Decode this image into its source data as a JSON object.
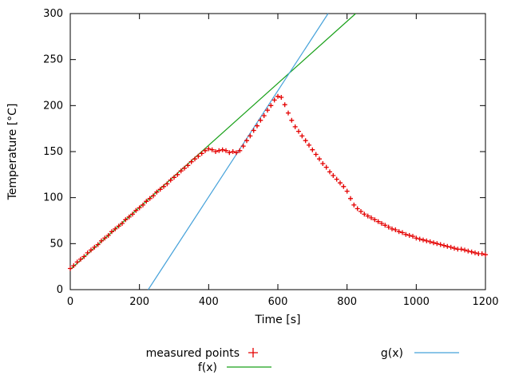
{
  "chart_data": {
    "type": "scatter",
    "title": "",
    "xlabel": "Time [s]",
    "ylabel": "Temperature [°C]",
    "xlim": [
      0,
      1200
    ],
    "ylim": [
      0,
      300
    ],
    "xticks": [
      0,
      200,
      400,
      600,
      800,
      1000,
      1200
    ],
    "yticks": [
      0,
      50,
      100,
      150,
      200,
      250,
      300
    ],
    "grid": false,
    "legend_position": "below-plot",
    "series": [
      {
        "name": "measured points",
        "type": "points",
        "marker": "plus",
        "color": "#e40000",
        "x_start": 0,
        "x_step": 10,
        "x_end": 1200,
        "y": [
          23,
          26,
          30,
          33,
          36,
          40,
          43,
          46,
          49,
          53,
          56,
          59,
          63,
          66,
          69,
          72,
          76,
          79,
          82,
          86,
          89,
          92,
          96,
          99,
          102,
          106,
          109,
          112,
          115,
          119,
          122,
          125,
          129,
          132,
          135,
          139,
          142,
          145,
          148,
          151,
          153,
          152,
          150,
          151,
          152,
          151,
          149,
          150,
          149,
          151,
          156,
          162,
          167,
          173,
          178,
          184,
          189,
          195,
          200,
          206,
          210,
          209,
          201,
          192,
          184,
          177,
          172,
          167,
          162,
          157,
          152,
          147,
          142,
          137,
          133,
          128,
          124,
          120,
          116,
          112,
          107,
          99,
          92,
          88,
          85,
          82,
          80,
          78,
          76,
          74,
          72,
          70,
          68,
          66,
          65,
          63,
          62,
          60,
          59,
          58,
          56,
          55,
          54,
          53,
          52,
          51,
          50,
          49,
          48,
          47,
          46,
          45,
          44,
          44,
          43,
          42,
          41,
          40,
          39,
          39,
          38
        ]
      },
      {
        "name": "f(x)",
        "type": "line",
        "color": "#18a018",
        "slope": 0.337,
        "intercept": 22.0
      },
      {
        "name": "g(x)",
        "type": "line",
        "color": "#46a2da",
        "slope": 0.577,
        "intercept": -130.0
      }
    ]
  }
}
